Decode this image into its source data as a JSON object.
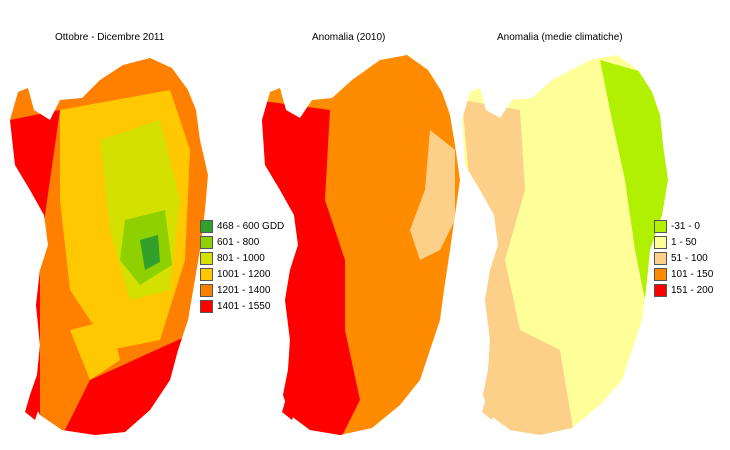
{
  "maps": [
    {
      "title": "Ottobre - Dicembre 2011"
    },
    {
      "title": "Anomalia (2010)"
    },
    {
      "title": "Anomalia (medie climatiche)"
    }
  ],
  "legend_gdd": [
    {
      "label": "468 - 600 GDD",
      "color": "#33a02c"
    },
    {
      "label": "601 - 800",
      "color": "#8fd100"
    },
    {
      "label": "801 - 1000",
      "color": "#d4e000"
    },
    {
      "label": "1001 - 1200",
      "color": "#ffc800"
    },
    {
      "label": "1201 - 1400",
      "color": "#ff7f00"
    },
    {
      "label": "1401 - 1550",
      "color": "#ff0000"
    }
  ],
  "legend_anomaly": [
    {
      "label": "-31 - 0",
      "color": "#b0f000"
    },
    {
      "label": "1 - 50",
      "color": "#ffff99"
    },
    {
      "label": "51 - 100",
      "color": "#fdd08a"
    },
    {
      "label": "101 - 150",
      "color": "#ff8c00"
    },
    {
      "label": "151 - 200",
      "color": "#ff0000"
    }
  ]
}
